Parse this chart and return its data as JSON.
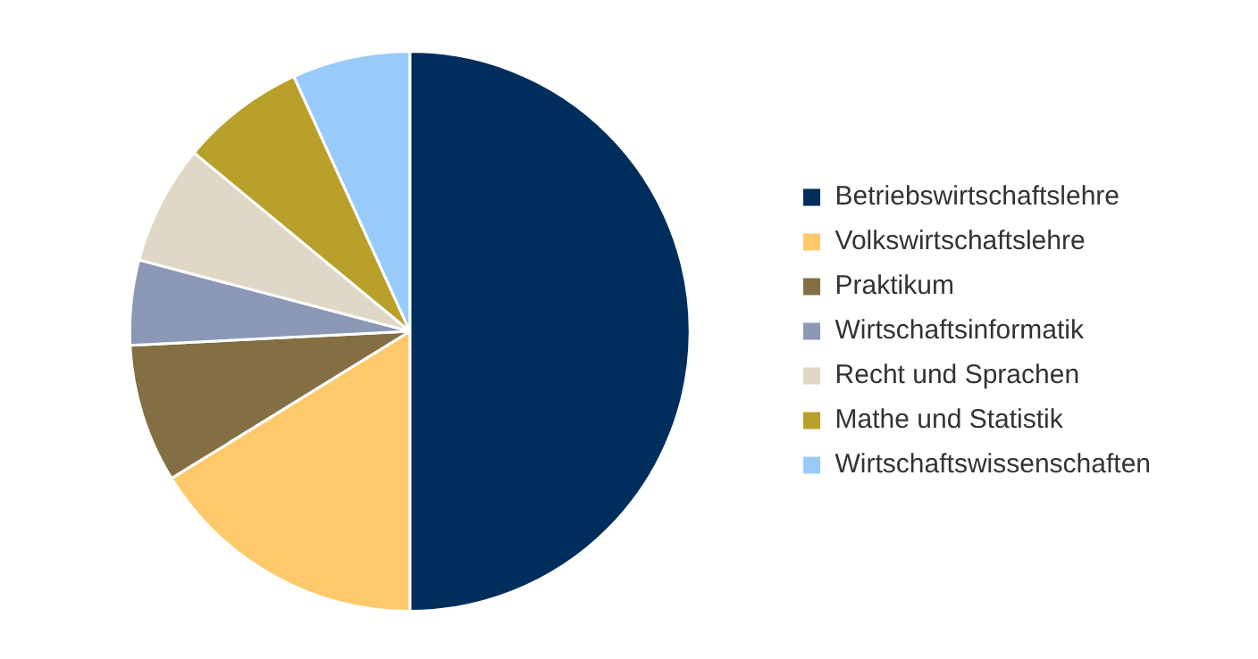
{
  "chart_data": {
    "type": "pie",
    "categories": [
      "Betriebswirtschaftslehre",
      "Volkswirtschaftslehre",
      "Praktikum",
      "Wirtschaftsinformatik",
      "Recht und Sprachen",
      "Mathe und Statistik",
      "Wirtschaftswissenschaften"
    ],
    "values": [
      50,
      16.2,
      8,
      4.9,
      6.9,
      7.2,
      6.8
    ],
    "colors": [
      "#002e5c",
      "#fdc96b",
      "#836f43",
      "#8b98b6",
      "#e0d8c6",
      "#b8a02a",
      "#99cbfa"
    ],
    "legend": "right"
  }
}
